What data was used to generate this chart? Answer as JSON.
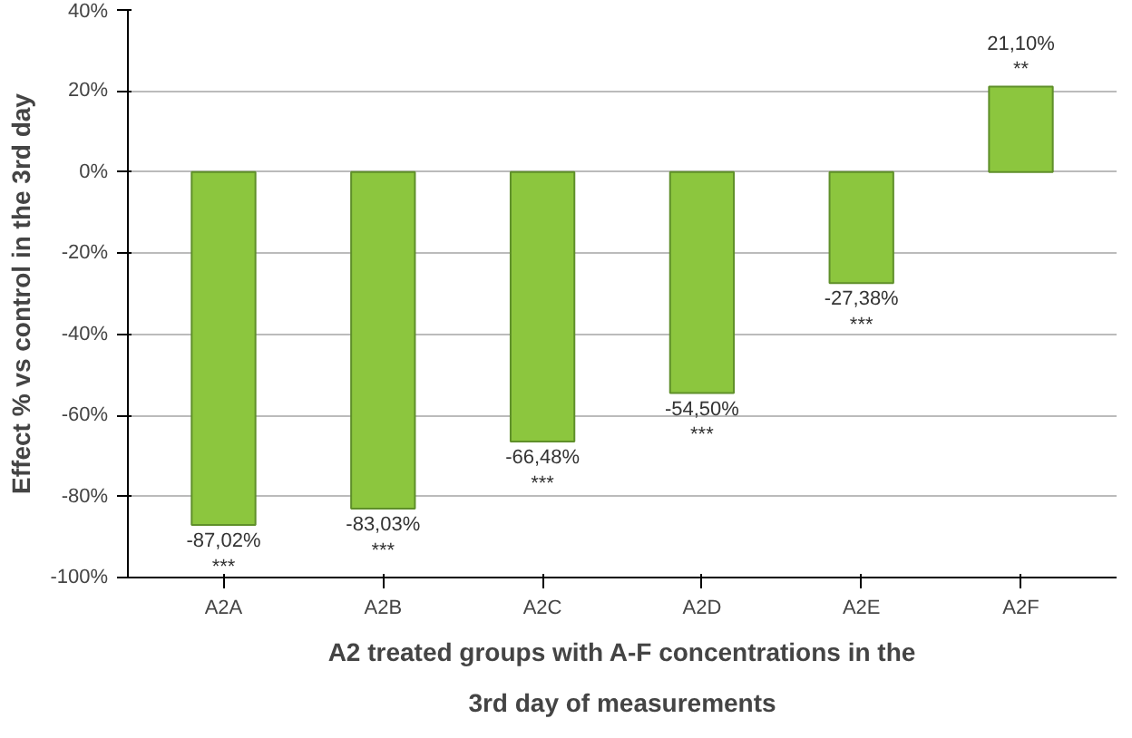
{
  "chart_data": {
    "type": "bar",
    "xlabel": "A2 treated groups with A-F concentrations in the 3rd day of measurements",
    "ylabel": "Effect % vs control in the 3rd day",
    "categories": [
      "A2A",
      "A2B",
      "A2C",
      "A2D",
      "A2E",
      "A2F"
    ],
    "values": [
      -87.02,
      -83.03,
      -66.48,
      -54.5,
      -27.38,
      21.1
    ],
    "value_labels": [
      "-87,02%\n***",
      "-83,03%\n***",
      "-66,48%\n***",
      "-54,50%\n***",
      "-27,38%\n***",
      "21,10%\n**"
    ],
    "color": "#8cc63e",
    "ylim": [
      -100,
      40
    ],
    "yticks": [
      {
        "value": -100,
        "label": "-100%"
      },
      {
        "value": -80,
        "label": "-80%"
      },
      {
        "value": -60,
        "label": "-60%"
      },
      {
        "value": -40,
        "label": "-40%"
      },
      {
        "value": -20,
        "label": "-20%"
      },
      {
        "value": 0,
        "label": "0%"
      },
      {
        "value": 20,
        "label": "20%"
      },
      {
        "value": 40,
        "label": "40%"
      }
    ],
    "grid": "y"
  }
}
